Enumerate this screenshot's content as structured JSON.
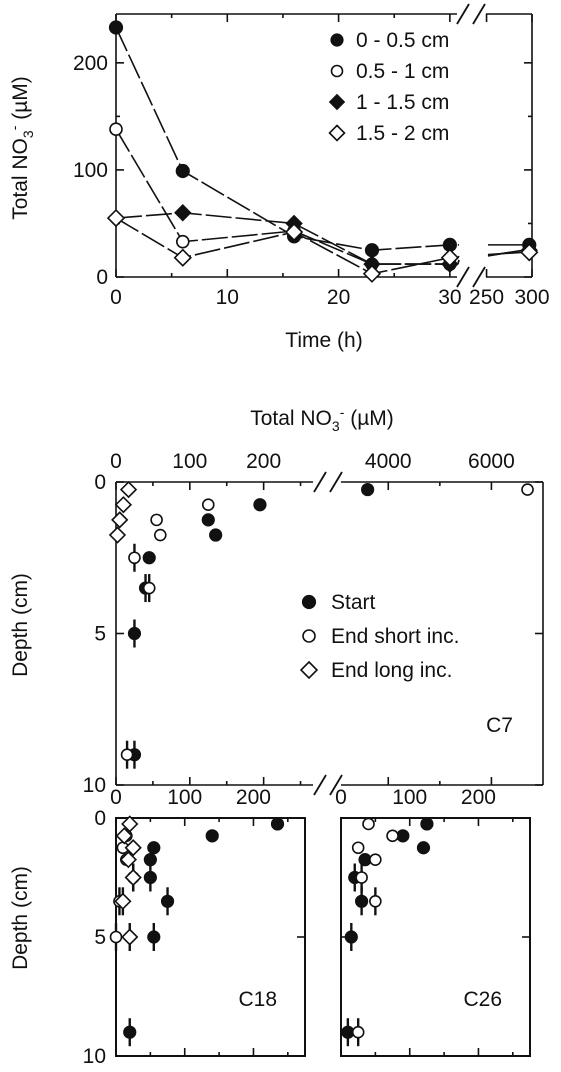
{
  "chart_data": [
    {
      "id": "time_series",
      "type": "line",
      "xlabel": "Time (h)",
      "ylabel_main": "Total NO",
      "ylabel_sub": "3",
      "ylabel_sup": "-",
      "ylabel_unit": " (µM)",
      "xlim_primary": [
        0,
        31
      ],
      "xlim_secondary": [
        245,
        300
      ],
      "ylim": [
        0,
        240
      ],
      "x_ticks_primary": [
        0,
        10,
        20,
        30
      ],
      "x_ticks_secondary": [
        250,
        300
      ],
      "y_ticks": [
        0,
        100,
        200
      ],
      "legend_position": "top-right",
      "series": [
        {
          "name": "0 - 0.5 cm",
          "marker": "filled-circle",
          "points": [
            [
              0,
              233
            ],
            [
              6,
              99
            ],
            [
              16,
              38
            ],
            [
              23,
              25
            ],
            [
              30,
              30
            ],
            [
              297,
              30
            ]
          ]
        },
        {
          "name": "0.5 - 1 cm",
          "marker": "open-circle",
          "points": [
            [
              0,
              138
            ],
            [
              6,
              33
            ],
            [
              16,
              43
            ],
            [
              23,
              12
            ],
            [
              30,
              12
            ],
            [
              297,
              25
            ]
          ]
        },
        {
          "name": "1 - 1.5 cm",
          "marker": "filled-diamond",
          "points": [
            [
              0,
              55
            ],
            [
              6,
              60
            ],
            [
              16,
              50
            ],
            [
              23,
              12
            ],
            [
              30,
              12
            ],
            [
              297,
              25
            ]
          ]
        },
        {
          "name": "1.5 - 2 cm",
          "marker": "open-diamond",
          "points": [
            [
              0,
              55
            ],
            [
              6,
              18
            ],
            [
              16,
              42
            ],
            [
              23,
              3
            ],
            [
              30,
              18
            ],
            [
              297,
              23
            ]
          ]
        }
      ]
    },
    {
      "id": "C7",
      "type": "scatter",
      "panel_label": "C7",
      "xlabel_main": "Total NO",
      "xlabel_sub": "3",
      "xlabel_sup": "-",
      "xlabel_unit": " (µM)",
      "ylabel": "Depth (cm)",
      "xlim_primary": [
        0,
        275
      ],
      "xlim_secondary": [
        3200,
        7000
      ],
      "ylim": [
        0,
        10
      ],
      "x_ticks_primary": [
        0,
        100,
        200
      ],
      "x_ticks_secondary": [
        4000,
        6000
      ],
      "y_ticks": [
        0,
        5,
        10
      ],
      "legend_position": "right",
      "legend": [
        {
          "name": "Start",
          "marker": "filled-circle"
        },
        {
          "name": "End short inc.",
          "marker": "open-circle"
        },
        {
          "name": "End long inc.",
          "marker": "open-diamond"
        }
      ],
      "series": [
        {
          "name": "Start",
          "marker": "filled-circle",
          "points": [
            [
              3600,
              0.25
            ],
            [
              195,
              0.75
            ],
            [
              125,
              1.25
            ],
            [
              135,
              1.75
            ],
            [
              45,
              2.5
            ],
            [
              40,
              3.5
            ],
            [
              25,
              5.0
            ],
            [
              25,
              9.0
            ]
          ]
        },
        {
          "name": "End short inc.",
          "marker": "open-circle",
          "points": [
            [
              6700,
              0.25
            ],
            [
              125,
              0.75
            ],
            [
              55,
              1.25
            ],
            [
              60,
              1.75
            ],
            [
              25,
              2.5
            ],
            [
              45,
              3.5
            ],
            [
              15,
              9.0
            ]
          ]
        },
        {
          "name": "End long inc.",
          "marker": "open-diamond",
          "points": [
            [
              17,
              0.25
            ],
            [
              10,
              0.75
            ],
            [
              5,
              1.25
            ],
            [
              2,
              1.75
            ]
          ]
        }
      ]
    },
    {
      "id": "C18",
      "type": "scatter",
      "panel_label": "C18",
      "ylabel": "Depth (cm)",
      "xlim": [
        0,
        275
      ],
      "ylim": [
        0,
        10
      ],
      "x_ticks": [
        0,
        100,
        200
      ],
      "y_ticks": [
        0,
        5,
        10
      ],
      "series": [
        {
          "name": "Start",
          "marker": "filled-circle",
          "points": [
            [
              235,
              0.25
            ],
            [
              140,
              0.75
            ],
            [
              55,
              1.25
            ],
            [
              50,
              1.75
            ],
            [
              50,
              2.5
            ],
            [
              75,
              3.5
            ],
            [
              55,
              5.0
            ],
            [
              20,
              9.0
            ]
          ]
        },
        {
          "name": "End short inc.",
          "marker": "open-circle",
          "points": [
            [
              15,
              0.75
            ],
            [
              10,
              1.25
            ],
            [
              15,
              1.75
            ],
            [
              25,
              2.5
            ],
            [
              5,
              3.5
            ],
            [
              0,
              5.0
            ]
          ]
        },
        {
          "name": "End long inc.",
          "marker": "open-diamond",
          "points": [
            [
              20,
              0.25
            ],
            [
              12,
              0.75
            ],
            [
              25,
              1.25
            ],
            [
              18,
              1.75
            ],
            [
              25,
              2.5
            ],
            [
              10,
              3.5
            ],
            [
              20,
              5.0
            ]
          ]
        }
      ]
    },
    {
      "id": "C26",
      "type": "scatter",
      "panel_label": "C26",
      "xlim": [
        0,
        275
      ],
      "ylim": [
        0,
        10
      ],
      "x_ticks": [
        0,
        100,
        200
      ],
      "y_ticks": [
        0,
        5,
        10
      ],
      "series": [
        {
          "name": "Start",
          "marker": "filled-circle",
          "points": [
            [
              125,
              0.25
            ],
            [
              90,
              0.75
            ],
            [
              120,
              1.25
            ],
            [
              35,
              1.75
            ],
            [
              20,
              2.5
            ],
            [
              30,
              3.5
            ],
            [
              15,
              5.0
            ],
            [
              10,
              9.0
            ]
          ]
        },
        {
          "name": "End short inc.",
          "marker": "open-circle",
          "points": [
            [
              40,
              0.25
            ],
            [
              75,
              0.75
            ],
            [
              25,
              1.25
            ],
            [
              50,
              1.75
            ],
            [
              30,
              2.5
            ],
            [
              50,
              3.5
            ],
            [
              25,
              9.0
            ]
          ]
        }
      ]
    }
  ]
}
